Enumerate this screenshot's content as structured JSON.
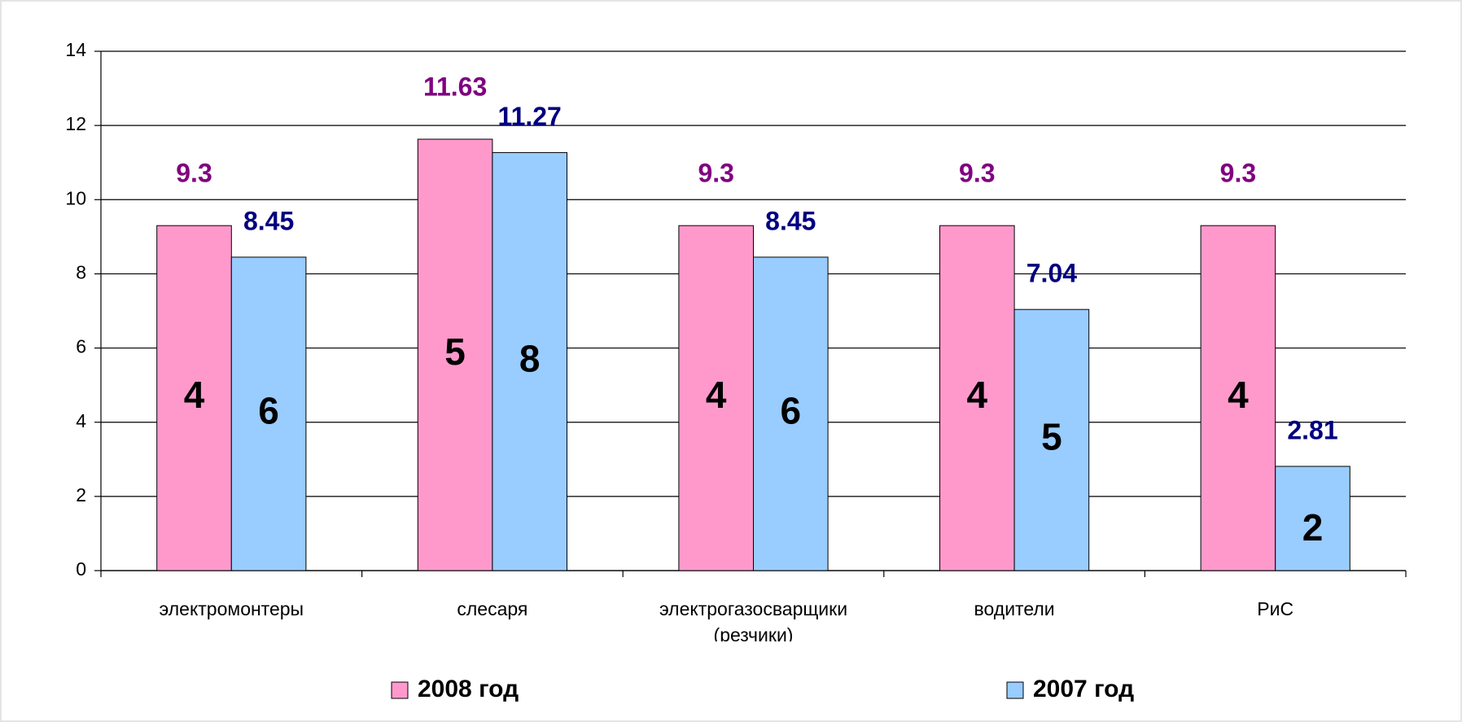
{
  "chart_data": {
    "type": "bar",
    "categories": [
      "электромонтеры",
      "слесаря",
      "электрогазосварщики (резчики)",
      "водители",
      "РиС"
    ],
    "series": [
      {
        "name": "2008 год",
        "color": "#ff99cc",
        "label_color": "#800080",
        "values": [
          9.3,
          11.63,
          9.3,
          9.3,
          9.3
        ],
        "counts": [
          4,
          5,
          4,
          4,
          4
        ]
      },
      {
        "name": "2007 год",
        "color": "#99ccff",
        "label_color": "#000080",
        "values": [
          8.45,
          11.27,
          8.45,
          7.04,
          2.81
        ],
        "counts": [
          6,
          8,
          6,
          5,
          2
        ]
      }
    ],
    "ylim": [
      0,
      14
    ],
    "yticks": [
      0,
      2,
      4,
      6,
      8,
      10,
      12,
      14
    ],
    "grid": true,
    "legend": "bottom"
  }
}
